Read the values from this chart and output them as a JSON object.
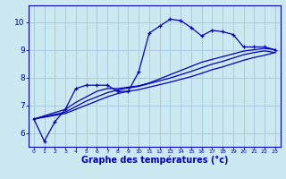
{
  "bg_color": "#cce8f0",
  "line_color": "#0000bb",
  "grid_color": "#aaccdd",
  "xlabel": "Graphe des températures (°c)",
  "xlabel_color": "#0000bb",
  "tick_color": "#0000bb",
  "xlim": [
    -0.5,
    23.5
  ],
  "ylim": [
    5.5,
    10.6
  ],
  "yticks": [
    6,
    7,
    8,
    9,
    10
  ],
  "xticks": [
    0,
    1,
    2,
    3,
    4,
    5,
    6,
    7,
    8,
    9,
    10,
    11,
    12,
    13,
    14,
    15,
    16,
    17,
    18,
    19,
    20,
    21,
    22,
    23
  ],
  "curves": [
    {
      "x": [
        0,
        1,
        2,
        3,
        4,
        5,
        6,
        7,
        8,
        9,
        10,
        11,
        12,
        13,
        14,
        15,
        16,
        17,
        18,
        19,
        20,
        21,
        22,
        23
      ],
      "y": [
        6.5,
        5.7,
        6.4,
        6.85,
        7.6,
        7.72,
        7.72,
        7.72,
        7.5,
        7.5,
        8.2,
        9.6,
        9.85,
        10.1,
        10.05,
        9.8,
        9.5,
        9.7,
        9.65,
        9.55,
        9.1,
        9.1,
        9.1,
        9.0
      ],
      "marker": "+"
    },
    {
      "x": [
        0,
        3,
        4,
        5,
        6,
        7,
        8,
        9,
        10,
        11,
        12,
        13,
        14,
        15,
        16,
        17,
        18,
        19,
        20,
        21,
        22,
        23
      ],
      "y": [
        6.5,
        6.85,
        7.1,
        7.3,
        7.5,
        7.6,
        7.6,
        7.65,
        7.7,
        7.8,
        7.95,
        8.1,
        8.25,
        8.4,
        8.55,
        8.65,
        8.75,
        8.85,
        8.95,
        9.0,
        9.05,
        9.0
      ],
      "marker": null
    },
    {
      "x": [
        0,
        3,
        4,
        5,
        6,
        7,
        8,
        9,
        10,
        11,
        12,
        13,
        14,
        15,
        16,
        17,
        18,
        19,
        20,
        21,
        22,
        23
      ],
      "y": [
        6.5,
        6.75,
        6.95,
        7.15,
        7.3,
        7.45,
        7.55,
        7.62,
        7.68,
        7.78,
        7.88,
        7.98,
        8.1,
        8.22,
        8.35,
        8.48,
        8.58,
        8.7,
        8.82,
        8.9,
        8.96,
        8.9
      ],
      "marker": null
    },
    {
      "x": [
        0,
        3,
        4,
        5,
        6,
        7,
        8,
        9,
        10,
        11,
        12,
        13,
        14,
        15,
        16,
        17,
        18,
        19,
        20,
        21,
        22,
        23
      ],
      "y": [
        6.5,
        6.7,
        6.85,
        7.0,
        7.15,
        7.3,
        7.42,
        7.5,
        7.56,
        7.65,
        7.74,
        7.83,
        7.93,
        8.03,
        8.15,
        8.28,
        8.38,
        8.5,
        8.62,
        8.72,
        8.8,
        8.9
      ],
      "marker": null
    }
  ]
}
